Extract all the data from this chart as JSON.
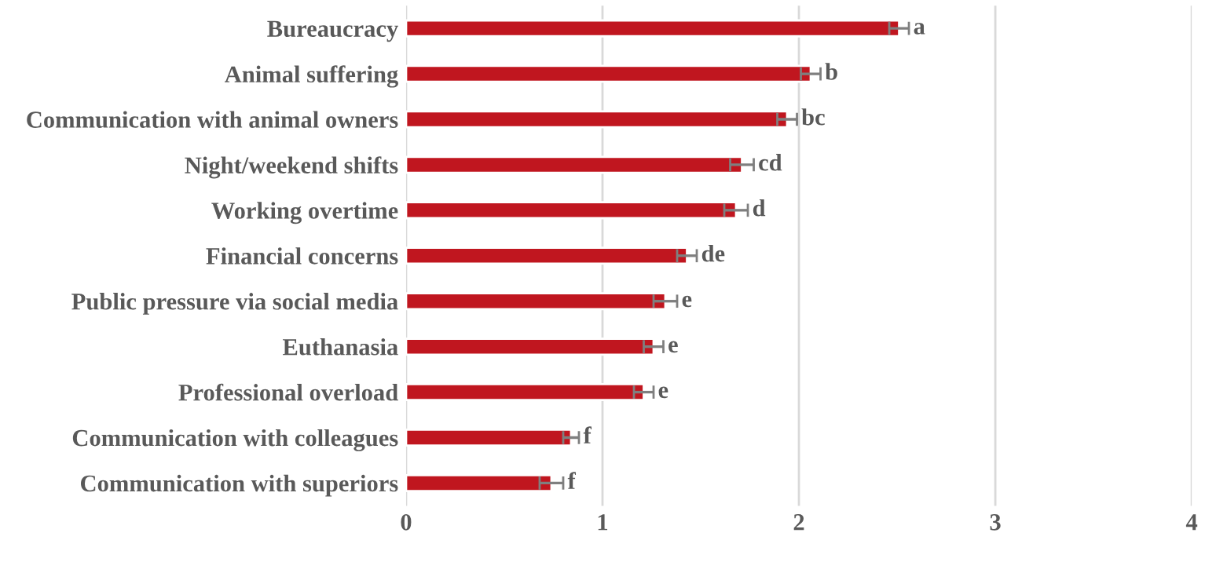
{
  "chart_data": {
    "type": "bar",
    "orientation": "horizontal",
    "categories": [
      "Bureaucracy",
      "Animal suffering",
      "Communication with animal owners",
      "Night/weekend shifts",
      "Working overtime",
      "Financial concerns",
      "Public pressure via social media",
      "Euthanasia",
      "Professional overload",
      "Communication with colleagues",
      "Communication with superiors"
    ],
    "values": [
      2.51,
      2.06,
      1.94,
      1.71,
      1.68,
      1.43,
      1.32,
      1.26,
      1.21,
      0.84,
      0.74
    ],
    "errors": [
      0.05,
      0.05,
      0.05,
      0.06,
      0.06,
      0.05,
      0.06,
      0.05,
      0.05,
      0.04,
      0.06
    ],
    "color": "#c0161f",
    "xlim": [
      0,
      4
    ],
    "xticks": [
      0,
      1,
      2,
      3,
      4
    ],
    "grid": "x",
    "annotations": [
      {
        "text": "a",
        "x": 2.56,
        "y": "Bureaucracy"
      },
      {
        "text": "b",
        "x": 2.11,
        "y": "Animal suffering"
      },
      {
        "text": "bc",
        "x": 1.99,
        "y": "Communication with animal owners"
      },
      {
        "text": "cd",
        "x": 1.77,
        "y": "Night/weekend shifts"
      },
      {
        "text": "d",
        "x": 1.74,
        "y": "Working overtime"
      },
      {
        "text": "de",
        "x": 1.48,
        "y": "Financial concerns"
      },
      {
        "text": "e",
        "x": 1.38,
        "y": "Public pressure via social media"
      },
      {
        "text": "e",
        "x": 1.31,
        "y": "Euthanasia"
      },
      {
        "text": "e",
        "x": 1.26,
        "y": "Professional overload"
      },
      {
        "text": "f",
        "x": 0.88,
        "y": "Communication with colleagues"
      },
      {
        "text": "f",
        "x": 0.8,
        "y": "Communication with superiors"
      }
    ]
  }
}
